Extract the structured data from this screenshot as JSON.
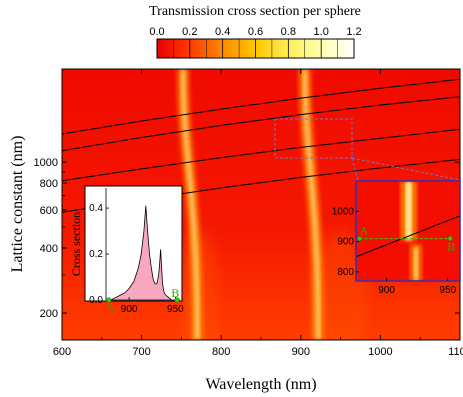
{
  "chart_data": [
    {
      "type": "heatmap",
      "title": "",
      "xlabel": "Wavelength (nm)",
      "ylabel": "Lattice constant (nm)",
      "xlim": [
        600,
        1100
      ],
      "ylim": [
        150,
        2700
      ],
      "yscale": "log",
      "xticks": [
        "600",
        "700",
        "800",
        "900",
        "1000",
        "1100"
      ],
      "yticks": [
        {
          "value": 200,
          "label": "200"
        },
        {
          "value": 400,
          "label": "400"
        },
        {
          "value": 600,
          "label": "600"
        },
        {
          "value": 800,
          "label": "800"
        },
        {
          "value": 1000,
          "label": "1000"
        }
      ],
      "colorbar": {
        "label": "Transmission cross section per sphere",
        "min": 0.0,
        "max": 1.2,
        "ticks": [
          "0.0",
          "0.2",
          "0.4",
          "0.6",
          "0.8",
          "1.0",
          "1.2"
        ],
        "colors": [
          "#e60000",
          "#ff3b00",
          "#ff8a00",
          "#ffc800",
          "#ffee55",
          "#ffffb0",
          "#ffffff"
        ]
      },
      "resonances": [
        {
          "wavelength_top": 752,
          "wavelength_bottom": 770,
          "peak": 1.0
        },
        {
          "wavelength_top": 905,
          "wavelength_bottom": 922,
          "peak": 1.1
        }
      ],
      "rayleigh_lines": [
        {
          "points": [
            [
              600,
              1350
            ],
            [
              700,
              1550
            ],
            [
              800,
              1760
            ],
            [
              900,
              1980
            ],
            [
              1000,
              2200
            ],
            [
              1100,
              2420
            ]
          ]
        },
        {
          "points": [
            [
              600,
              1130
            ],
            [
              700,
              1300
            ],
            [
              800,
              1480
            ],
            [
              900,
              1660
            ],
            [
              1000,
              1840
            ],
            [
              1100,
              2010
            ]
          ]
        },
        {
          "points": [
            [
              600,
              820
            ],
            [
              700,
              930
            ],
            [
              800,
              1050
            ],
            [
              900,
              1170
            ],
            [
              1000,
              1290
            ],
            [
              1100,
              1420
            ]
          ]
        },
        {
          "points": [
            [
              600,
              585
            ],
            [
              700,
              670
            ],
            [
              800,
              760
            ],
            [
              900,
              850
            ],
            [
              1000,
              940
            ],
            [
              1100,
              1030
            ]
          ]
        }
      ],
      "zoom_region": {
        "x": [
          875,
          978
        ],
        "y": [
          780,
          1120
        ]
      }
    },
    {
      "type": "area",
      "title": "",
      "xlabel": "",
      "ylabel": "Cross section",
      "xlim": [
        875,
        955
      ],
      "ylim": [
        0,
        0.47
      ],
      "xticks": [
        "900",
        "950"
      ],
      "yticks": [
        "0.0",
        "0.2",
        "0.4"
      ],
      "x": [
        875,
        880,
        885,
        890,
        895,
        900,
        905,
        910,
        913,
        916,
        918,
        920,
        922,
        924,
        926,
        928,
        930,
        932,
        933,
        934,
        935,
        936,
        937,
        938,
        940,
        943,
        946,
        950,
        955
      ],
      "values": [
        0.0,
        0.0,
        0.01,
        0.02,
        0.03,
        0.05,
        0.08,
        0.14,
        0.2,
        0.3,
        0.41,
        0.3,
        0.2,
        0.14,
        0.09,
        0.07,
        0.07,
        0.11,
        0.16,
        0.22,
        0.15,
        0.08,
        0.05,
        0.03,
        0.02,
        0.01,
        0.0,
        0.0,
        0.0
      ],
      "markers": [
        {
          "label": "A",
          "x": 878,
          "y": 0.0
        },
        {
          "label": "B",
          "x": 952,
          "y": 0.0
        }
      ]
    },
    {
      "type": "heatmap",
      "title": "",
      "xlabel": "",
      "ylabel": "",
      "xlim": [
        875,
        960
      ],
      "ylim": [
        770,
        1100
      ],
      "xticks": [
        "900",
        "950"
      ],
      "yticks": [
        "800",
        "900",
        "1000"
      ],
      "resonances": [
        {
          "wavelength_top": 918,
          "wavelength_bottom": 924
        }
      ],
      "rayleigh_lines": [
        {
          "points": [
            [
              875,
              850
            ],
            [
              960,
              985
            ]
          ]
        }
      ],
      "dashed_line": {
        "from": [
          878,
          910
        ],
        "to": [
          952,
          910
        ]
      },
      "markers": [
        {
          "label": "A",
          "x": 878,
          "y": 910
        },
        {
          "label": "B",
          "x": 952,
          "y": 910
        }
      ]
    }
  ]
}
